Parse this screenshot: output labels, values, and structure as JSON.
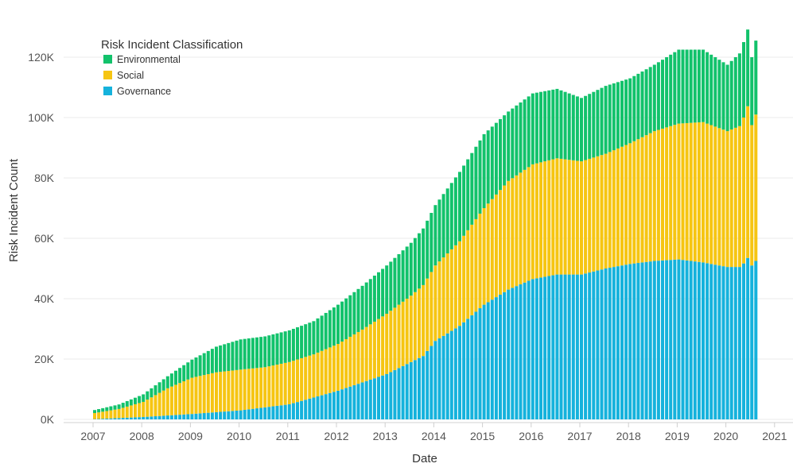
{
  "chart_data": {
    "type": "bar",
    "stacked": true,
    "title": "",
    "xlabel": "Date",
    "ylabel": "Risk Incident Count",
    "x_ticks": [
      "2007",
      "2008",
      "2009",
      "2010",
      "2011",
      "2012",
      "2013",
      "2014",
      "2015",
      "2016",
      "2017",
      "2018",
      "2019",
      "2020",
      "2021"
    ],
    "y_ticks": [
      {
        "value": 0,
        "label": "0K"
      },
      {
        "value": 20000,
        "label": "20K"
      },
      {
        "value": 40000,
        "label": "40K"
      },
      {
        "value": 60000,
        "label": "60K"
      },
      {
        "value": 80000,
        "label": "80K"
      },
      {
        "value": 100000,
        "label": "100K"
      },
      {
        "value": 120000,
        "label": "120K"
      }
    ],
    "ylim": [
      0,
      130000
    ],
    "xlim": [
      2007.0,
      2021.0
    ],
    "grid": true,
    "frequency": "monthly",
    "start": "2007-01",
    "legend": {
      "title": "Risk Incident Classification",
      "position": "top-left",
      "entries": [
        {
          "name": "Environmental",
          "color": "#12C26B"
        },
        {
          "name": "Social",
          "color": "#F6C512"
        },
        {
          "name": "Governance",
          "color": "#15B2DC"
        }
      ]
    },
    "stack_order": [
      "Governance",
      "Social",
      "Environmental"
    ],
    "series_anchors": {
      "_note": "Monthly values are linearly interpolated between these [decimal year, value] anchors",
      "Governance": [
        [
          2007.0,
          100
        ],
        [
          2008.0,
          800
        ],
        [
          2009.0,
          1800
        ],
        [
          2010.0,
          3000
        ],
        [
          2011.0,
          5000
        ],
        [
          2012.0,
          9500
        ],
        [
          2013.0,
          15000
        ],
        [
          2013.75,
          21000
        ],
        [
          2014.0,
          26000
        ],
        [
          2014.5,
          31000
        ],
        [
          2015.0,
          38000
        ],
        [
          2015.5,
          43000
        ],
        [
          2016.0,
          46500
        ],
        [
          2016.5,
          48000
        ],
        [
          2017.0,
          48000
        ],
        [
          2017.5,
          50000
        ],
        [
          2018.0,
          51500
        ],
        [
          2018.5,
          52500
        ],
        [
          2019.0,
          53000
        ],
        [
          2019.5,
          52000
        ],
        [
          2020.0,
          50500
        ],
        [
          2020.3,
          50500
        ],
        [
          2020.4,
          54000
        ],
        [
          2020.5,
          51000
        ],
        [
          2020.58,
          52500
        ]
      ],
      "Social": [
        [
          2007.0,
          2000
        ],
        [
          2007.5,
          3000
        ],
        [
          2008.0,
          5000
        ],
        [
          2008.5,
          9000
        ],
        [
          2009.0,
          12000
        ],
        [
          2009.5,
          13200
        ],
        [
          2010.0,
          13500
        ],
        [
          2010.5,
          13300
        ],
        [
          2011.0,
          14000
        ],
        [
          2011.5,
          14300
        ],
        [
          2012.0,
          15500
        ],
        [
          2012.5,
          17500
        ],
        [
          2013.0,
          20000
        ],
        [
          2013.5,
          22000
        ],
        [
          2014.0,
          25000
        ],
        [
          2014.5,
          28000
        ],
        [
          2015.0,
          32000
        ],
        [
          2015.5,
          36000
        ],
        [
          2016.0,
          38000
        ],
        [
          2016.5,
          38500
        ],
        [
          2017.0,
          37500
        ],
        [
          2017.5,
          38000
        ],
        [
          2018.0,
          40000
        ],
        [
          2018.5,
          43000
        ],
        [
          2019.0,
          45000
        ],
        [
          2019.5,
          46500
        ],
        [
          2020.0,
          45000
        ],
        [
          2020.3,
          47000
        ],
        [
          2020.4,
          51000
        ],
        [
          2020.5,
          46500
        ],
        [
          2020.58,
          48500
        ]
      ],
      "Environmental": [
        [
          2007.0,
          1000
        ],
        [
          2007.5,
          1500
        ],
        [
          2008.0,
          2500
        ],
        [
          2008.5,
          4000
        ],
        [
          2009.0,
          6000
        ],
        [
          2009.5,
          8500
        ],
        [
          2010.0,
          10000
        ],
        [
          2010.5,
          10200
        ],
        [
          2011.0,
          10500
        ],
        [
          2011.5,
          11000
        ],
        [
          2012.0,
          13000
        ],
        [
          2012.5,
          14500
        ],
        [
          2013.0,
          16000
        ],
        [
          2013.5,
          17500
        ],
        [
          2014.0,
          20000
        ],
        [
          2014.5,
          23000
        ],
        [
          2015.0,
          24500
        ],
        [
          2015.5,
          23000
        ],
        [
          2016.0,
          23500
        ],
        [
          2016.5,
          23000
        ],
        [
          2017.0,
          21000
        ],
        [
          2017.5,
          22500
        ],
        [
          2018.0,
          21500
        ],
        [
          2018.5,
          22000
        ],
        [
          2019.0,
          24500
        ],
        [
          2019.5,
          24000
        ],
        [
          2020.0,
          22000
        ],
        [
          2020.3,
          24500
        ],
        [
          2020.4,
          26000
        ],
        [
          2020.5,
          22500
        ],
        [
          2020.58,
          24500
        ]
      ]
    }
  }
}
